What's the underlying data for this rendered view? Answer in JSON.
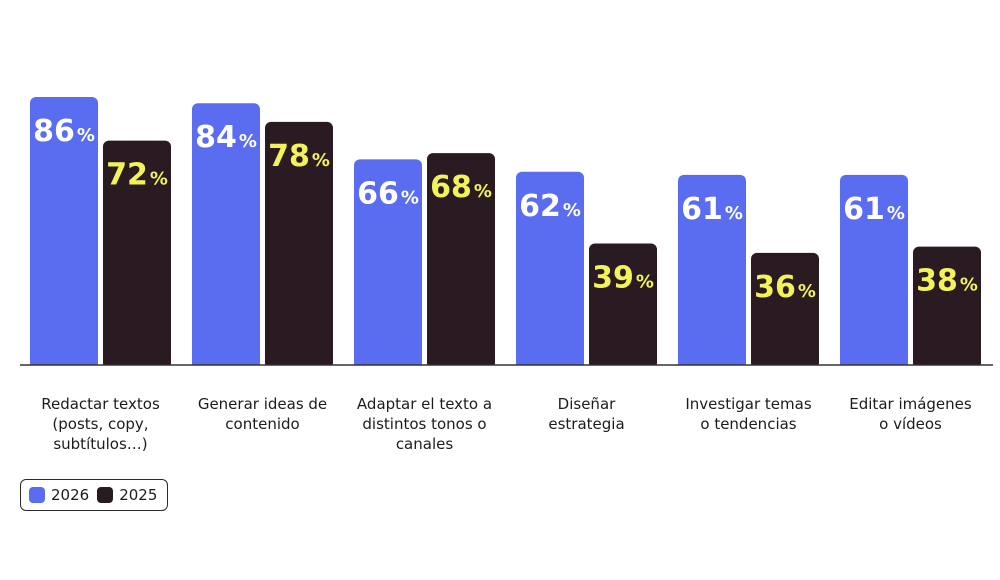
{
  "chart_data": {
    "type": "bar",
    "categories": [
      "Redactar textos\n(posts, copy,\nsubtítulos…)",
      "Generar ideas de\ncontenido",
      "Adaptar el texto a\ndistintos tonos o\ncanales",
      "Diseñar\nestrategia",
      "Investigar temas\no tendencias",
      "Editar imágenes\no vídeos"
    ],
    "series": [
      {
        "name": "2026",
        "values": [
          86,
          84,
          66,
          62,
          61,
          61
        ],
        "labels": [
          "86",
          "84",
          "66",
          "62",
          "61",
          "61"
        ],
        "color": "#5a6cf0",
        "label_color": "#ffffff"
      },
      {
        "name": "2025",
        "values": [
          72,
          78,
          68,
          39,
          36,
          38
        ],
        "labels": [
          "72",
          "78",
          "68",
          "39",
          "36",
          "38"
        ],
        "color": "#2a1a22",
        "label_color": "#f2f25a"
      }
    ],
    "value_suffix": "%",
    "ylim": [
      0,
      100
    ],
    "legend_position": "bottom-left",
    "grid": false,
    "axis_line_color": "#333333"
  }
}
